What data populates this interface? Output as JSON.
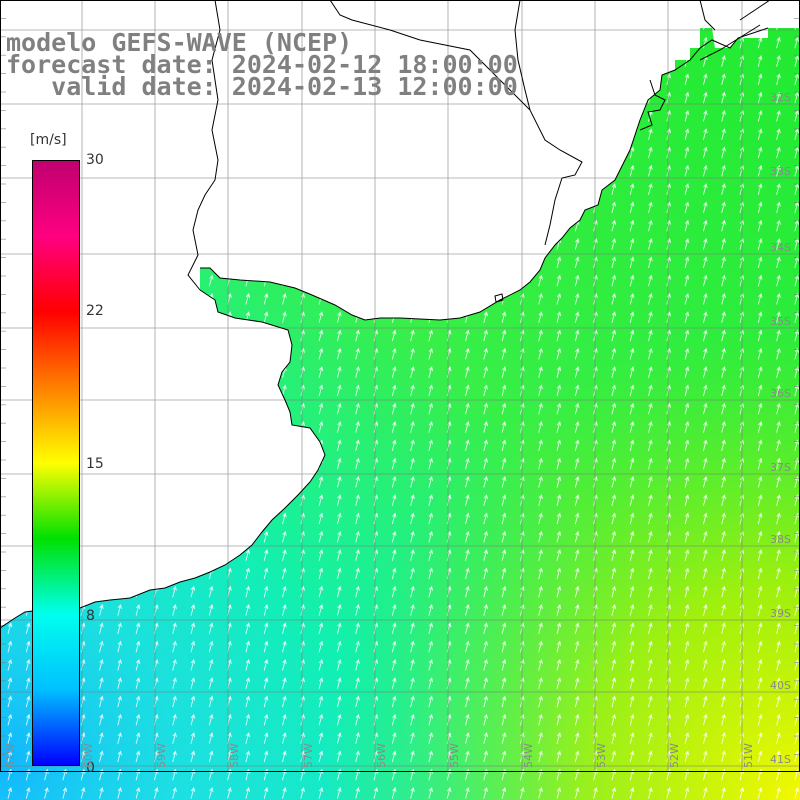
{
  "title": {
    "line1": "modelo GEFS-WAVE (NCEP)",
    "line2": "forecast date: 2024-02-12 18:00:00",
    "line3": "   valid date: 2024-02-13 12:00:00"
  },
  "colorbar": {
    "unit": "[m/s]",
    "ticks": [
      "30",
      "22",
      "15",
      "8",
      "0"
    ],
    "tick_values": [
      30,
      22,
      15,
      8,
      0
    ],
    "range": [
      0,
      30
    ],
    "colors": [
      "#0000ff",
      "#00c0ff",
      "#00ffee",
      "#00e000",
      "#ffff00",
      "#ff8000",
      "#ff0000",
      "#ff0080",
      "#c00070"
    ]
  },
  "lat_labels": [
    "32S",
    "33S",
    "34S",
    "35S",
    "36S",
    "37S",
    "38S",
    "39S",
    "40S",
    "41S"
  ],
  "lon_labels": [
    "61W",
    "60W",
    "59W",
    "58W",
    "57W",
    "56W",
    "55W",
    "54W",
    "53W",
    "52W",
    "51W"
  ],
  "chart_data": {
    "type": "heatmap",
    "variable": "wind speed",
    "unit": "m/s",
    "lon_range": [
      -61.0,
      -50.2
    ],
    "lat_range": [
      -41.3,
      -30.5
    ],
    "value_range": [
      0,
      30
    ],
    "field_description_points": [
      {
        "lon": -60.5,
        "lat": -40.5,
        "value": 8
      },
      {
        "lon": -58.0,
        "lat": -38.5,
        "value": 9
      },
      {
        "lon": -56.5,
        "lat": -36.5,
        "value": 11
      },
      {
        "lon": -54.0,
        "lat": -35.0,
        "value": 12
      },
      {
        "lon": -52.0,
        "lat": -33.0,
        "value": 13
      },
      {
        "lon": -51.0,
        "lat": -40.5,
        "value": 15
      },
      {
        "lon": -57.2,
        "lat": -35.5,
        "value": 8
      }
    ]
  }
}
